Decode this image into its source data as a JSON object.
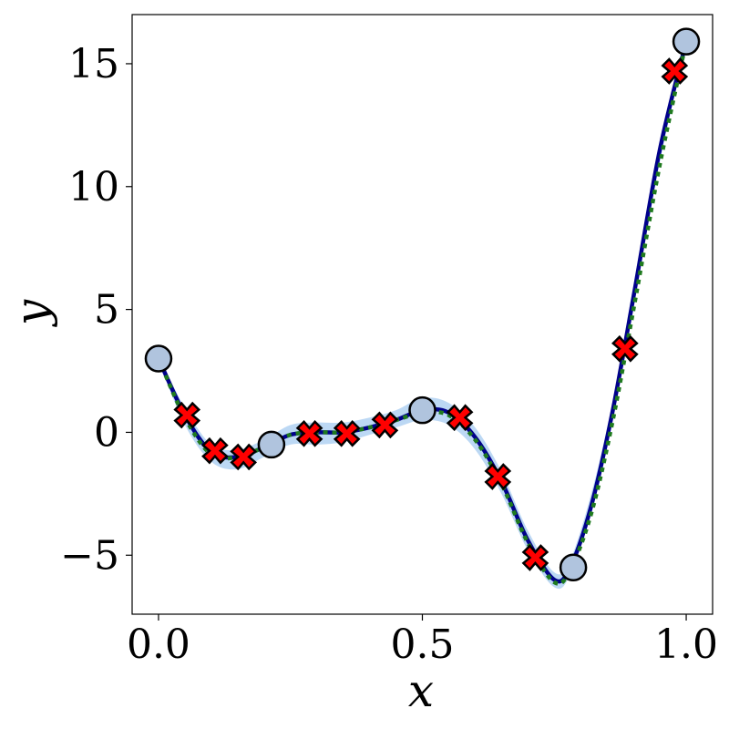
{
  "chart_data": {
    "type": "line",
    "title": "",
    "xlabel": "x",
    "ylabel": "y",
    "xlim": [
      -0.05,
      1.05
    ],
    "ylim": [
      -7.4,
      17.0
    ],
    "grid": false,
    "legend": "none",
    "x_ticks": [
      {
        "value": 0.0,
        "label": "0.0"
      },
      {
        "value": 0.5,
        "label": "0.5"
      },
      {
        "value": 1.0,
        "label": "1.0"
      }
    ],
    "y_ticks": [
      {
        "value": -5,
        "label": "−5"
      },
      {
        "value": 0,
        "label": "0"
      },
      {
        "value": 5,
        "label": "5"
      },
      {
        "value": 10,
        "label": "10"
      },
      {
        "value": 15,
        "label": "15"
      }
    ],
    "series": [
      {
        "kind": "band",
        "color": "#a6cbf0",
        "x": [
          0.0,
          0.05,
          0.1,
          0.15,
          0.2,
          0.25,
          0.3,
          0.35,
          0.4,
          0.45,
          0.5,
          0.55,
          0.6,
          0.65,
          0.7,
          0.75,
          0.78,
          0.82,
          0.86,
          0.9,
          0.95,
          1.0
        ],
        "lower": [
          2.9,
          0.3,
          -1.2,
          -1.5,
          -1.0,
          -0.5,
          -0.5,
          -0.4,
          -0.1,
          0.2,
          0.5,
          0.3,
          -0.7,
          -2.5,
          -4.8,
          -6.3,
          -5.8,
          -3.2,
          0.5,
          5.2,
          11.0,
          15.7
        ],
        "upper": [
          3.1,
          1.0,
          -0.5,
          -0.7,
          -0.3,
          0.3,
          0.4,
          0.4,
          0.6,
          0.9,
          1.4,
          1.2,
          0.2,
          -1.6,
          -4.0,
          -5.7,
          -5.2,
          -2.5,
          1.2,
          6.0,
          11.8,
          16.0
        ]
      },
      {
        "kind": "line",
        "color": "#00008b",
        "style": "solid",
        "x": [
          0.0,
          0.05,
          0.1,
          0.15,
          0.2,
          0.25,
          0.3,
          0.35,
          0.4,
          0.45,
          0.5,
          0.55,
          0.6,
          0.65,
          0.7,
          0.75,
          0.78,
          0.82,
          0.86,
          0.9,
          0.95,
          1.0
        ],
        "y": [
          3.0,
          0.7,
          -0.8,
          -1.0,
          -0.6,
          -0.1,
          0.0,
          0.0,
          0.2,
          0.5,
          0.9,
          0.8,
          -0.2,
          -2.0,
          -4.4,
          -6.0,
          -5.5,
          -3.0,
          0.8,
          5.5,
          11.5,
          15.9
        ]
      },
      {
        "kind": "line",
        "color": "#1f7a1f",
        "style": "dotted",
        "x": [
          0.0,
          0.05,
          0.1,
          0.15,
          0.2,
          0.25,
          0.3,
          0.35,
          0.4,
          0.45,
          0.5,
          0.55,
          0.6,
          0.65,
          0.7,
          0.75,
          0.78,
          0.82,
          0.86,
          0.9,
          0.95,
          1.0
        ],
        "y": [
          3.0,
          0.6,
          -0.9,
          -1.0,
          -0.6,
          -0.1,
          0.0,
          0.0,
          0.2,
          0.5,
          0.8,
          0.7,
          -0.3,
          -2.1,
          -4.5,
          -6.1,
          -5.6,
          -3.3,
          0.4,
          5.0,
          10.9,
          15.9
        ]
      },
      {
        "kind": "circles",
        "color": "#b0c4de",
        "x": [
          0.0,
          0.214,
          0.5,
          0.786,
          1.0
        ],
        "y": [
          3.0,
          -0.5,
          0.9,
          -5.5,
          15.9
        ]
      },
      {
        "kind": "crosses",
        "color": "#ff0000",
        "x": [
          0.054,
          0.107,
          0.161,
          0.286,
          0.357,
          0.429,
          0.571,
          0.643,
          0.714,
          0.884,
          0.978
        ],
        "y": [
          0.7,
          -0.75,
          -1.0,
          -0.05,
          -0.05,
          0.3,
          0.6,
          -1.8,
          -5.1,
          3.4,
          14.7
        ]
      }
    ]
  }
}
